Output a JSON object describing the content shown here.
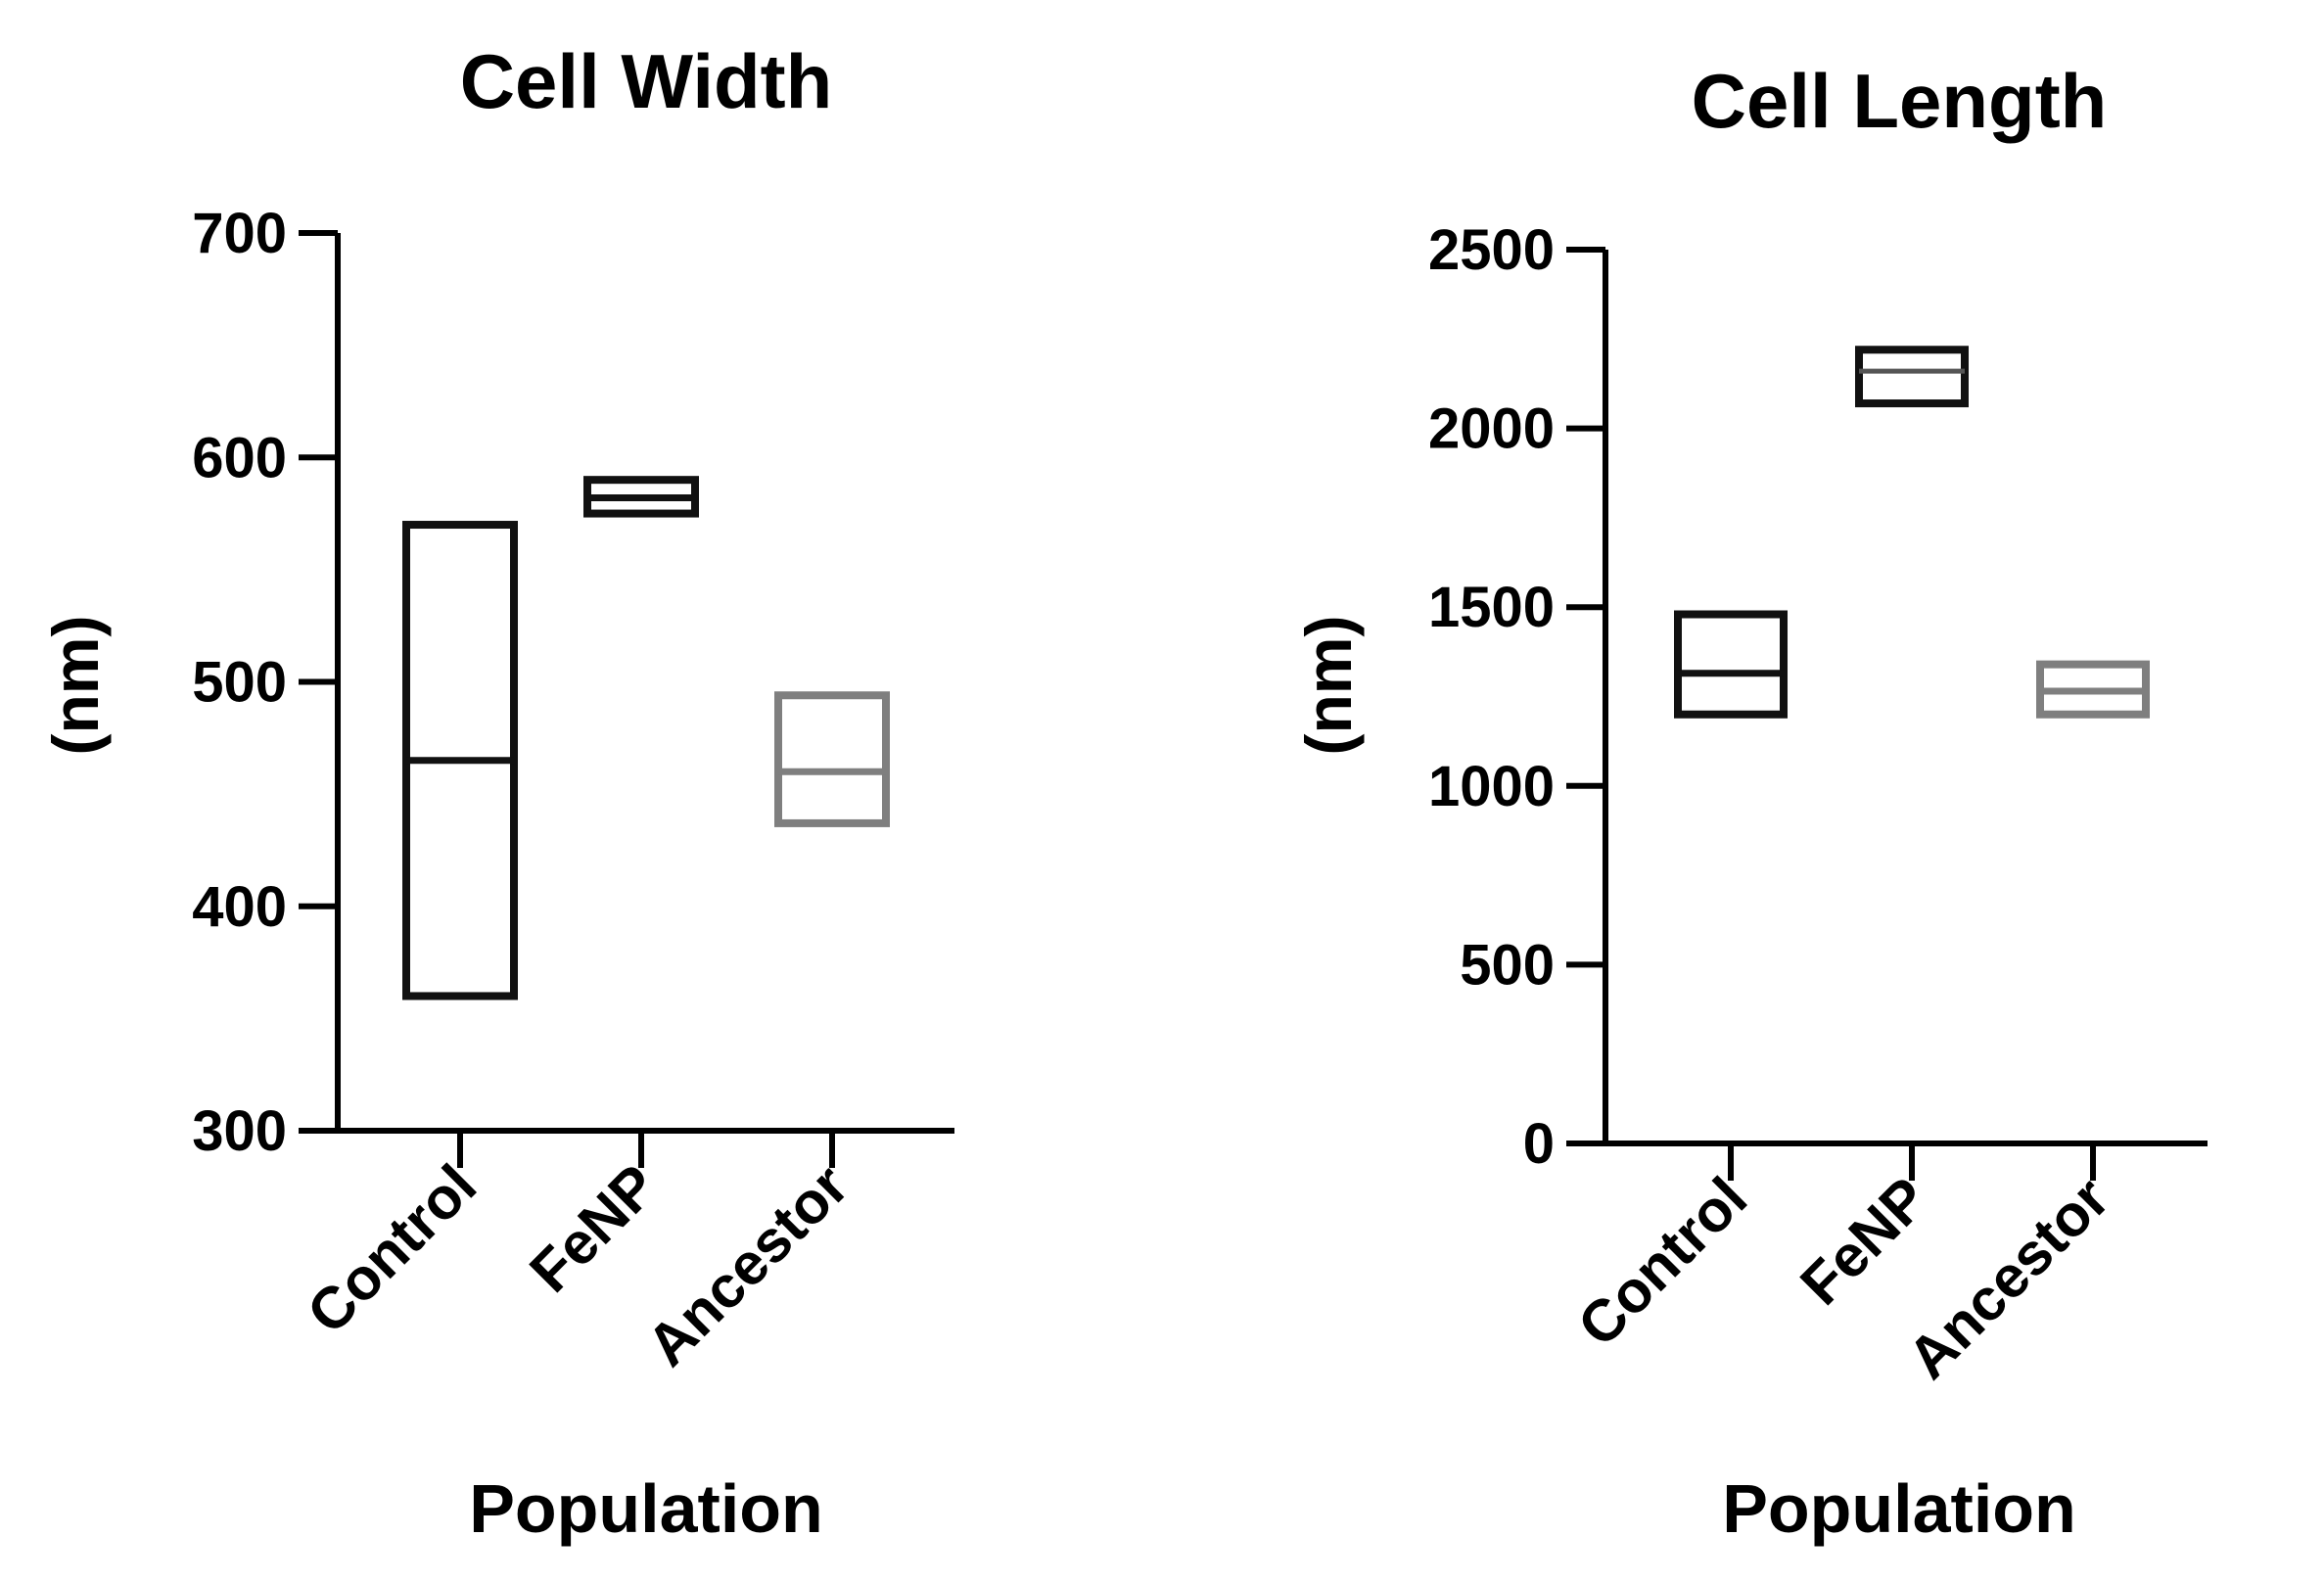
{
  "chart_data": [
    {
      "type": "box",
      "title": "Cell Width",
      "ylabel": "(nm)",
      "xlabel": "Population",
      "ylim": [
        300,
        700
      ],
      "yticks": [
        "300",
        "400",
        "500",
        "600",
        "700"
      ],
      "categories": [
        "Control",
        "FeNP",
        "Ancestor"
      ],
      "series": [
        {
          "values": [
            {
              "min": 360,
              "median": 465,
              "max": 570
            },
            {
              "min": 575,
              "median": 582,
              "max": 590
            },
            {
              "min": 437,
              "median": 460,
              "max": 494
            }
          ]
        }
      ],
      "colors": [
        "#111111",
        "#111111",
        "#7f7f7f"
      ],
      "grid": false
    },
    {
      "type": "box",
      "title": "Cell Length",
      "ylabel": "(nm)",
      "xlabel": "Population",
      "ylim": [
        0,
        2500
      ],
      "yticks": [
        "0",
        "500",
        "1000",
        "1500",
        "2000",
        "2500"
      ],
      "categories": [
        "Control",
        "FeNP",
        "Ancestor"
      ],
      "series": [
        {
          "values": [
            {
              "min": 1200,
              "median": 1315,
              "max": 1480
            },
            {
              "min": 2070,
              "median": 2160,
              "max": 2220
            },
            {
              "min": 1200,
              "median": 1265,
              "max": 1340
            }
          ]
        }
      ],
      "colors": [
        "#111111",
        "#111111",
        "#7f7f7f"
      ],
      "grid": false
    }
  ]
}
